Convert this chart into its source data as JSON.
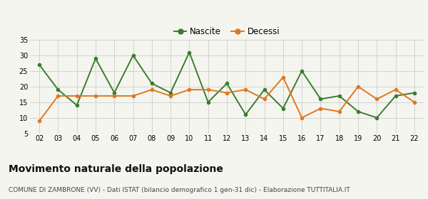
{
  "years": [
    "02",
    "03",
    "04",
    "05",
    "06",
    "07",
    "08",
    "09",
    "10",
    "11",
    "12",
    "13",
    "14",
    "15",
    "16",
    "17",
    "18",
    "19",
    "20",
    "21",
    "22"
  ],
  "nascite": [
    27,
    19,
    14,
    29,
    18,
    30,
    21,
    18,
    31,
    15,
    21,
    11,
    19,
    13,
    25,
    16,
    17,
    12,
    10,
    17,
    18
  ],
  "decessi": [
    9,
    17,
    17,
    17,
    17,
    17,
    19,
    17,
    19,
    19,
    18,
    19,
    16,
    23,
    10,
    13,
    12,
    20,
    16,
    19,
    15
  ],
  "nascite_color": "#3a7d2c",
  "decessi_color": "#e07820",
  "bg_color": "#f5f5f0",
  "grid_color": "#cccccc",
  "title": "Movimento naturale della popolazione",
  "subtitle": "COMUNE DI ZAMBRONE (VV) - Dati ISTAT (bilancio demografico 1 gen-31 dic) - Elaborazione TUTTITALIA.IT",
  "ylim_min": 5,
  "ylim_max": 35,
  "yticks": [
    5,
    10,
    15,
    20,
    25,
    30,
    35
  ],
  "legend_nascite": "Nascite",
  "legend_decessi": "Decessi",
  "title_fontsize": 10,
  "subtitle_fontsize": 6.5,
  "marker_size": 4,
  "line_width": 1.4
}
